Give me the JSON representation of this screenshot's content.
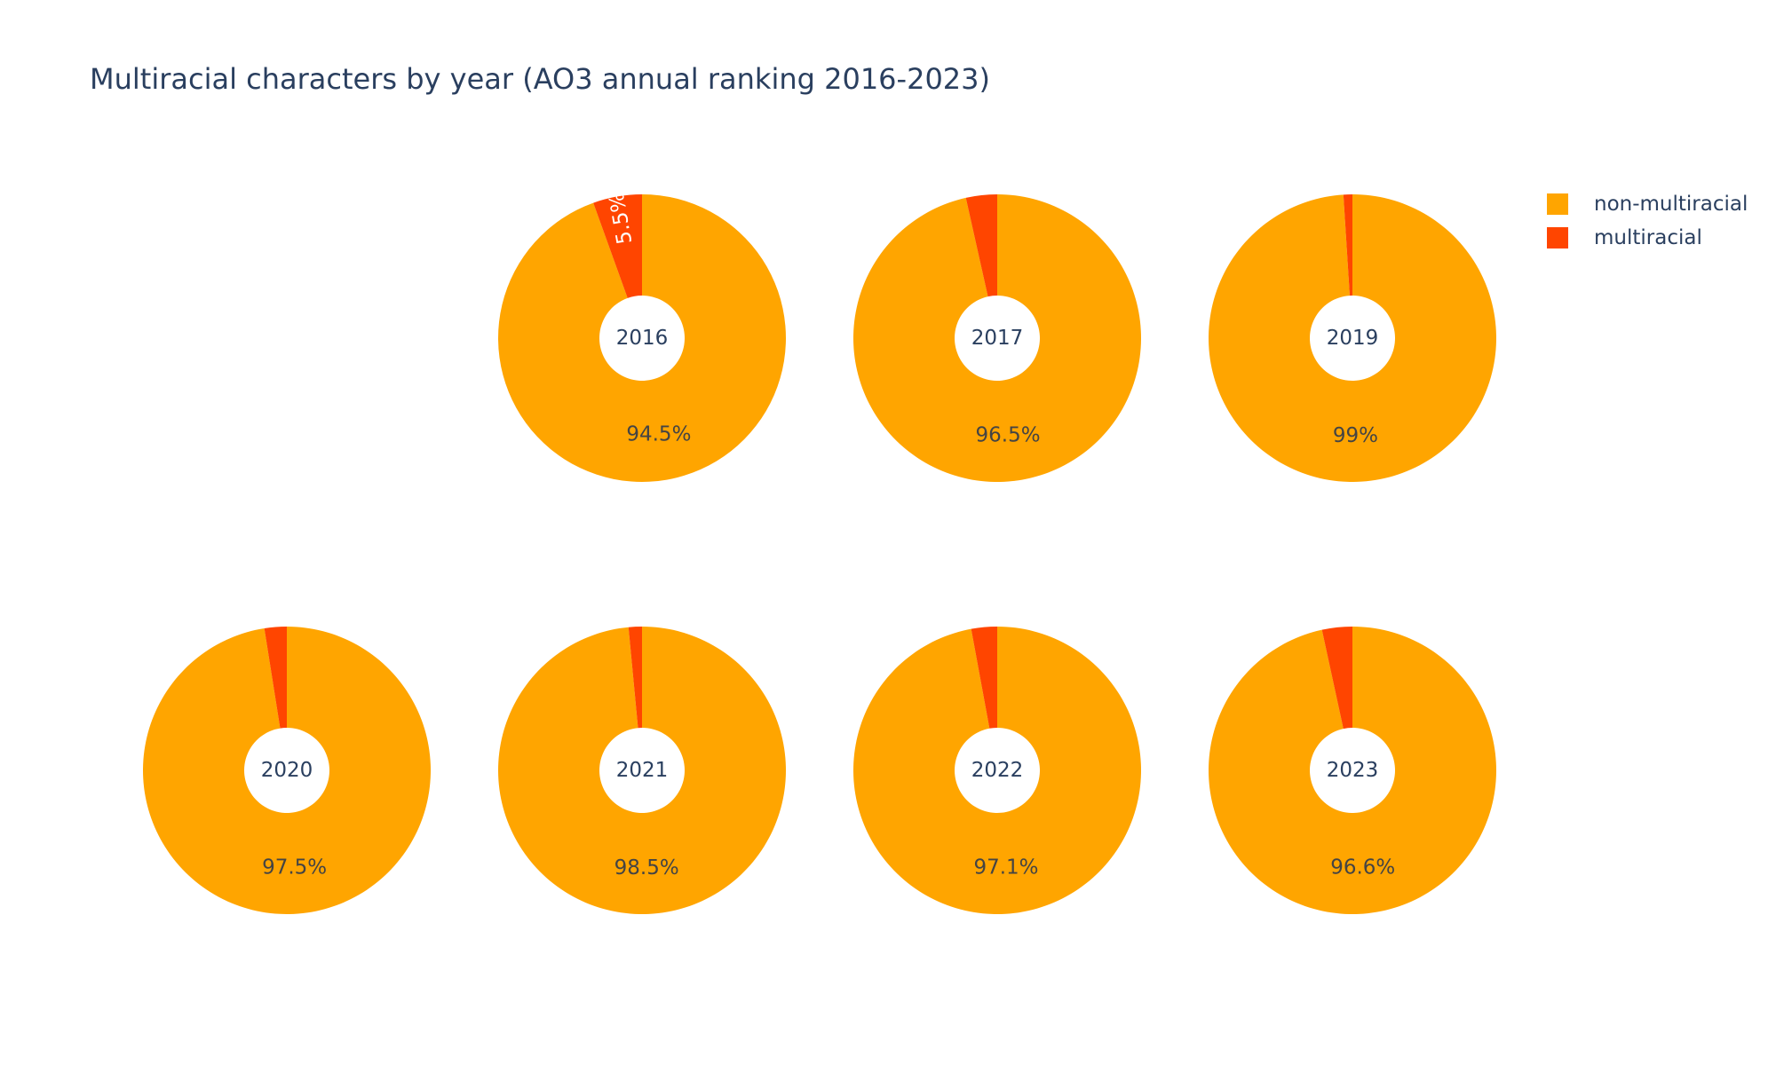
{
  "chart_data": {
    "type": "pie",
    "title": "Multiracial characters by year (AO3 annual ranking 2016-2023)",
    "hole": true,
    "legend_position": "top-right",
    "categories": [
      "non-multiracial",
      "multiracial"
    ],
    "colors": {
      "non-multiracial": "#FFA500",
      "multiracial": "#FF4500"
    },
    "pies": [
      {
        "year": "2016",
        "values": [
          94.5,
          5.5
        ],
        "labels": [
          "94.5%",
          "5.5%"
        ]
      },
      {
        "year": "2017",
        "values": [
          96.5,
          3.5
        ],
        "labels": [
          "96.5%",
          ""
        ]
      },
      {
        "year": "2019",
        "values": [
          99.0,
          1.0
        ],
        "labels": [
          "99%",
          ""
        ]
      },
      {
        "year": "2020",
        "values": [
          97.5,
          2.5
        ],
        "labels": [
          "97.5%",
          ""
        ]
      },
      {
        "year": "2021",
        "values": [
          98.5,
          1.5
        ],
        "labels": [
          "98.5%",
          ""
        ]
      },
      {
        "year": "2022",
        "values": [
          97.1,
          2.9
        ],
        "labels": [
          "97.1%",
          ""
        ]
      },
      {
        "year": "2023",
        "values": [
          96.6,
          3.4
        ],
        "labels": [
          "96.6%",
          ""
        ]
      }
    ],
    "legend": [
      {
        "name": "non-multiracial",
        "color": "#FFA500"
      },
      {
        "name": "multiracial",
        "color": "#FF4500"
      }
    ]
  }
}
